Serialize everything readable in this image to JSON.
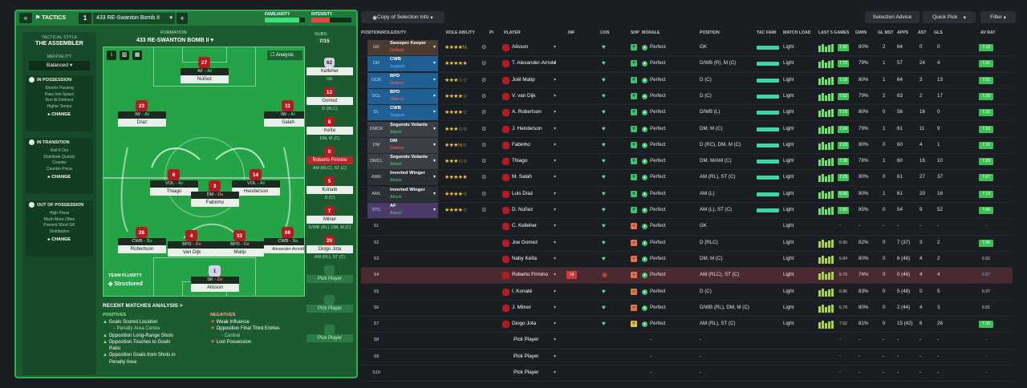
{
  "tactics": {
    "tab_label": "TACTICS",
    "slot_number": "1",
    "tactic_name": "433 RE-Swanton Bomb II",
    "add_label": "+",
    "familiarity_label": "FAMILIARITY",
    "intensity_label": "INTENSITY",
    "familiarity_pct": 0.85,
    "intensity_pct": 0.45
  },
  "tactical_style": {
    "heading": "TACTICAL STYLE",
    "name": "THE ASSEMBLER",
    "mentality_label": "MENTALITY",
    "mentality_value": "Balanced",
    "sections": [
      {
        "title": "IN POSSESSION",
        "lines": [
          "Shorter Passing",
          "Pass Into Space",
          "Run At Defence",
          "Higher Tempo"
        ],
        "change": "CHANGE"
      },
      {
        "title": "IN TRANSITION",
        "lines": [
          "Roll It Out",
          "Distribute Quickly",
          "Counter",
          "Counter-Press"
        ],
        "change": "CHANGE"
      },
      {
        "title": "OUT OF POSSESSION",
        "lines": [
          "High Press",
          "Much More Often",
          "Prevent Short GK",
          "Distribution"
        ],
        "change": "CHANGE"
      }
    ]
  },
  "formation": {
    "label": "FORMATION",
    "name": "433 RE-SWANTON BOMB II",
    "analysis_label": "Analysis",
    "subs_label": "SUBS:",
    "subs_count": "7/15"
  },
  "pitch_players": [
    {
      "num": "27",
      "role": "AF",
      "duty": "At",
      "name": "Núñez"
    },
    {
      "num": "23",
      "role": "IW",
      "duty": "At",
      "name": "Díaz"
    },
    {
      "num": "11",
      "role": "IW",
      "duty": "At",
      "name": "Salah"
    },
    {
      "num": "6",
      "role": "VOL",
      "duty": "At",
      "name": "Thiago"
    },
    {
      "num": "14",
      "role": "VOL",
      "duty": "At",
      "name": "Henderson"
    },
    {
      "num": "3",
      "role": "DM",
      "duty": "De",
      "name": "Fabinho"
    },
    {
      "num": "26",
      "role": "CWB",
      "duty": "Su",
      "name": "Robertson"
    },
    {
      "num": "4",
      "role": "BPD",
      "duty": "De",
      "name": "Van Dijk"
    },
    {
      "num": "32",
      "role": "BPD",
      "duty": "De",
      "name": "Matip"
    },
    {
      "num": "66",
      "role": "CWB",
      "duty": "Su",
      "name": "Alexander-Arnold"
    },
    {
      "num": "1",
      "role": "SK",
      "duty": "De",
      "name": "Alisson"
    }
  ],
  "team_fluidity": {
    "label": "TEAM FLUIDITY",
    "value": "Structured"
  },
  "subs": [
    {
      "num": "62",
      "name": "Kelleher",
      "pos": "GK"
    },
    {
      "num": "12",
      "name": "Gomez",
      "pos": "D (RLC)"
    },
    {
      "num": "8",
      "name": "Keïta",
      "pos": "DM, M (C)"
    },
    {
      "num": "9",
      "name": "Roberto Firmino",
      "pos": "AM (RLC), ST (C)"
    },
    {
      "num": "5",
      "name": "Konaté",
      "pos": "D (C)"
    },
    {
      "num": "7",
      "name": "Milner",
      "pos": "D/WB (RL), DM, M (C)"
    },
    {
      "num": "20",
      "name": "Diogo Jota",
      "pos": "AM (RL), ST (C)"
    },
    {
      "num": "",
      "name": "Pick Player",
      "pos": ""
    },
    {
      "num": "",
      "name": "Pick Player",
      "pos": ""
    },
    {
      "num": "",
      "name": "Pick Player",
      "pos": ""
    }
  ],
  "recent_analysis": {
    "title": "RECENT MATCHES ANALYSIS >",
    "positives_label": "POSITIVES",
    "positives": [
      "Goals Scored Location",
      "- Penalty Area Centre",
      "Opposition Long-Range Shots",
      "Opposition Touches to Goals",
      "Ratio",
      "Opposition Goals from Shots in",
      "Penalty Area"
    ],
    "negatives_label": "NEGATIVES",
    "negatives": [
      "Weak Influence",
      "Opposition Final Third Entries",
      "- Central",
      "Lost Possession"
    ]
  },
  "toolbar": {
    "view_label": "Copy of Selection Info",
    "selection_advice": "Selection Advice",
    "quick_pick": "Quick Pick",
    "filter": "Filter"
  },
  "columns": [
    "POSITION/ROLE/DUTY",
    "ROLE ABILITY",
    "PI",
    "PLAYER",
    "INF",
    "CON",
    "SHP",
    "MORALE",
    "POSITION",
    "TAC FAMI",
    "MATCH LOAD",
    "LAST 5 GAMES",
    "GWIN",
    "GL MST",
    "APPS",
    "AST",
    "GLS",
    "AV RAT"
  ],
  "rows": [
    {
      "pos": "GK",
      "role": "Sweeper Keeper",
      "duty": "Defend",
      "stars": "★★★★½",
      "player": "Alisson",
      "morale": "Perfect",
      "position": "GK",
      "load": "Light",
      "gw": "7.32",
      "gwin": "80%",
      "glmst": "2",
      "apps": "64",
      "ast": "0",
      "gls": "0",
      "avrat": "7.18",
      "shp": "+",
      "color": "#4a3c30"
    },
    {
      "pos": "DR",
      "role": "CWB",
      "duty": "Support",
      "stars": "★★★★★",
      "player": "T. Alexander-Arnold",
      "morale": "Perfect",
      "position": "D/WB (R), M (C)",
      "load": "Light",
      "gw": "7.70",
      "gwin": "79%",
      "glmst": "1",
      "apps": "57",
      "ast": "24",
      "gls": "4",
      "avrat": "7.31",
      "shp": "+",
      "color": "#1f5f94"
    },
    {
      "pos": "DCR",
      "role": "BPD",
      "duty": "Defend",
      "stars": "★★★☆☆",
      "player": "Joël Matip",
      "morale": "Perfect",
      "position": "D (C)",
      "load": "Light",
      "gw": "7.18",
      "gwin": "80%",
      "glmst": "1",
      "apps": "64",
      "ast": "3",
      "gls": "13",
      "avrat": "7.01",
      "shp": "+",
      "color": "#1f5f94"
    },
    {
      "pos": "DCL",
      "role": "BPD",
      "duty": "Defend",
      "stars": "★★★★☆",
      "player": "V. van Dijk",
      "morale": "Perfect",
      "position": "D (C)",
      "load": "Light",
      "gw": "7.52",
      "gwin": "79%",
      "glmst": "2",
      "apps": "63",
      "ast": "2",
      "gls": "17",
      "avrat": "7.20",
      "shp": "+",
      "color": "#1f5f94"
    },
    {
      "pos": "DL",
      "role": "CWB",
      "duty": "Support",
      "stars": "★★★★☆",
      "player": "A. Robertson",
      "morale": "Perfect",
      "position": "D/WB (L)",
      "load": "Light",
      "gw": "7.10",
      "gwin": "80%",
      "glmst": "0",
      "apps": "56",
      "ast": "16",
      "gls": "0",
      "avrat": "7.16",
      "shp": "+",
      "color": "#1f5f94"
    },
    {
      "pos": "DMCR",
      "role": "Segundo Volante",
      "duty": "Attack",
      "stars": "★★★☆☆",
      "player": "J. Henderson",
      "morale": "Perfect",
      "position": "DM, M (C)",
      "load": "Light",
      "gw": "7.24",
      "gwin": "79%",
      "glmst": "1",
      "apps": "61",
      "ast": "11",
      "gls": "9",
      "avrat": "7.10",
      "shp": "+",
      "color": "#3a3f46"
    },
    {
      "pos": "DM",
      "role": "DM",
      "duty": "Defend",
      "stars": "★★★½☆",
      "player": "Fabinho",
      "morale": "Perfect",
      "position": "D (RC), DM, M (C)",
      "load": "Light",
      "gw": "7.23",
      "gwin": "80%",
      "glmst": "0",
      "apps": "60",
      "ast": "4",
      "gls": "1",
      "avrat": "7.10",
      "shp": "+",
      "color": "#3a3f46"
    },
    {
      "pos": "DMCL",
      "role": "Segundo Volante",
      "duty": "Attack",
      "stars": "★★★☆☆",
      "player": "Thiago",
      "morale": "Perfect",
      "position": "DM, M/AM (C)",
      "load": "Light",
      "gw": "7.38",
      "gwin": "78%",
      "glmst": "1",
      "apps": "60",
      "ast": "16",
      "gls": "10",
      "avrat": "7.20",
      "shp": "+",
      "color": "#3a3f46"
    },
    {
      "pos": "AMR",
      "role": "Inverted Winger",
      "duty": "Attack",
      "stars": "★★★★★",
      "player": "M. Salah",
      "morale": "Perfect",
      "position": "AM (RL), ST (C)",
      "load": "Light",
      "gw": "7.25",
      "gwin": "80%",
      "glmst": "0",
      "apps": "61",
      "ast": "27",
      "gls": "37",
      "avrat": "7.67",
      "shp": "+",
      "color": "#2b2f36"
    },
    {
      "pos": "AML",
      "role": "Inverted Winger",
      "duty": "Attack",
      "stars": "★★★★☆",
      "player": "Luis Díaz",
      "morale": "Perfect",
      "position": "AM (L)",
      "load": "Light",
      "gw": "6.90",
      "gwin": "80%",
      "glmst": "1",
      "apps": "61",
      "ast": "20",
      "gls": "16",
      "avrat": "7.13",
      "shp": "+",
      "color": "#2b2f36"
    },
    {
      "pos": "STC",
      "role": "AF",
      "duty": "Attack",
      "stars": "★★★★☆",
      "player": "D. Núñez",
      "morale": "Perfect",
      "position": "AM (L), ST (C)",
      "load": "Light",
      "gw": "7.80",
      "gwin": "85%",
      "glmst": "0",
      "apps": "54",
      "ast": "9",
      "gls": "52",
      "avrat": "7.66",
      "shp": "+",
      "color": "#4c3a6a"
    },
    {
      "pos": "S1",
      "role": "",
      "duty": "",
      "stars": "",
      "player": "C. Kelleher",
      "morale": "Perfect",
      "position": "GK",
      "load": "Light",
      "gw": "-",
      "gwin": "-",
      "glmst": "-",
      "apps": "-",
      "ast": "-",
      "gls": "-",
      "avrat": "-",
      "shp": "−",
      "color": ""
    },
    {
      "pos": "S2",
      "role": "",
      "duty": "",
      "stars": "",
      "player": "Joe Gomez",
      "morale": "Perfect",
      "position": "D (RLC)",
      "load": "Light",
      "gw": "6.90",
      "gwin": "82%",
      "glmst": "0",
      "apps": "7 (37)",
      "ast": "3",
      "gls": "2",
      "avrat": "7.06",
      "shp": "−",
      "color": ""
    },
    {
      "pos": "S3",
      "role": "",
      "duty": "",
      "stars": "",
      "player": "Naby Keïta",
      "morale": "Perfect",
      "position": "DM, M (C)",
      "load": "Light",
      "gw": "6.84",
      "gwin": "80%",
      "glmst": "0",
      "apps": "6 (48)",
      "ast": "4",
      "gls": "2",
      "avrat": "6.92",
      "shp": "−",
      "color": ""
    },
    {
      "pos": "S4",
      "role": "",
      "duty": "",
      "stars": "",
      "player": "Roberto Firmino",
      "morale": "Perfect",
      "position": "AM (RLC), ST (C)",
      "load": "Light",
      "gw": "6.70",
      "gwin": "74%",
      "glmst": "0",
      "apps": "0 (46)",
      "ast": "4",
      "gls": "4",
      "avrat": "6.87",
      "shp": "−",
      "color": ""
    },
    {
      "pos": "S5",
      "role": "",
      "duty": "",
      "stars": "",
      "player": "I. Konaté",
      "morale": "Perfect",
      "position": "D (C)",
      "load": "Light",
      "gw": "6.86",
      "gwin": "83%",
      "glmst": "0",
      "apps": "5 (48)",
      "ast": "0",
      "gls": "5",
      "avrat": "6.97",
      "shp": "−",
      "color": ""
    },
    {
      "pos": "S6",
      "role": "",
      "duty": "",
      "stars": "",
      "player": "J. Milner",
      "morale": "Perfect",
      "position": "D/WB (RL), DM, M (C)",
      "load": "Light",
      "gw": "6.78",
      "gwin": "80%",
      "glmst": "0",
      "apps": "2 (44)",
      "ast": "4",
      "gls": "3",
      "avrat": "6.81",
      "shp": "−",
      "color": ""
    },
    {
      "pos": "S7",
      "role": "",
      "duty": "",
      "stars": "",
      "player": "Diogo Jota",
      "morale": "Perfect",
      "position": "AM (RL), ST (C)",
      "load": "Light",
      "gw": "7.62",
      "gwin": "81%",
      "glmst": "0",
      "apps": "15 (42)",
      "ast": "6",
      "gls": "26",
      "avrat": "7.33",
      "shp": "=",
      "color": ""
    },
    {
      "pos": "S8",
      "role": "",
      "duty": "",
      "stars": "",
      "player": "Pick Player",
      "morale": "-",
      "position": "-",
      "load": "",
      "gw": "-",
      "gwin": "-",
      "glmst": "-",
      "apps": "-",
      "ast": "-",
      "gls": "-",
      "avrat": "-",
      "shp": "",
      "color": ""
    },
    {
      "pos": "S9",
      "role": "",
      "duty": "",
      "stars": "",
      "player": "Pick Player",
      "morale": "-",
      "position": "-",
      "load": "",
      "gw": "-",
      "gwin": "-",
      "glmst": "-",
      "apps": "-",
      "ast": "-",
      "gls": "-",
      "avrat": "-",
      "shp": "",
      "color": ""
    },
    {
      "pos": "S10",
      "role": "",
      "duty": "",
      "stars": "",
      "player": "Pick Player",
      "morale": "-",
      "position": "-",
      "load": "",
      "gw": "-",
      "gwin": "-",
      "glmst": "-",
      "apps": "-",
      "ast": "-",
      "gls": "-",
      "avrat": "-",
      "shp": "",
      "color": ""
    }
  ],
  "colors": {
    "pitch": "#25a447",
    "accent": "#2fae4e",
    "defend": "#ff6363",
    "attack": "#49d46b",
    "support": "#6ab7ff"
  }
}
